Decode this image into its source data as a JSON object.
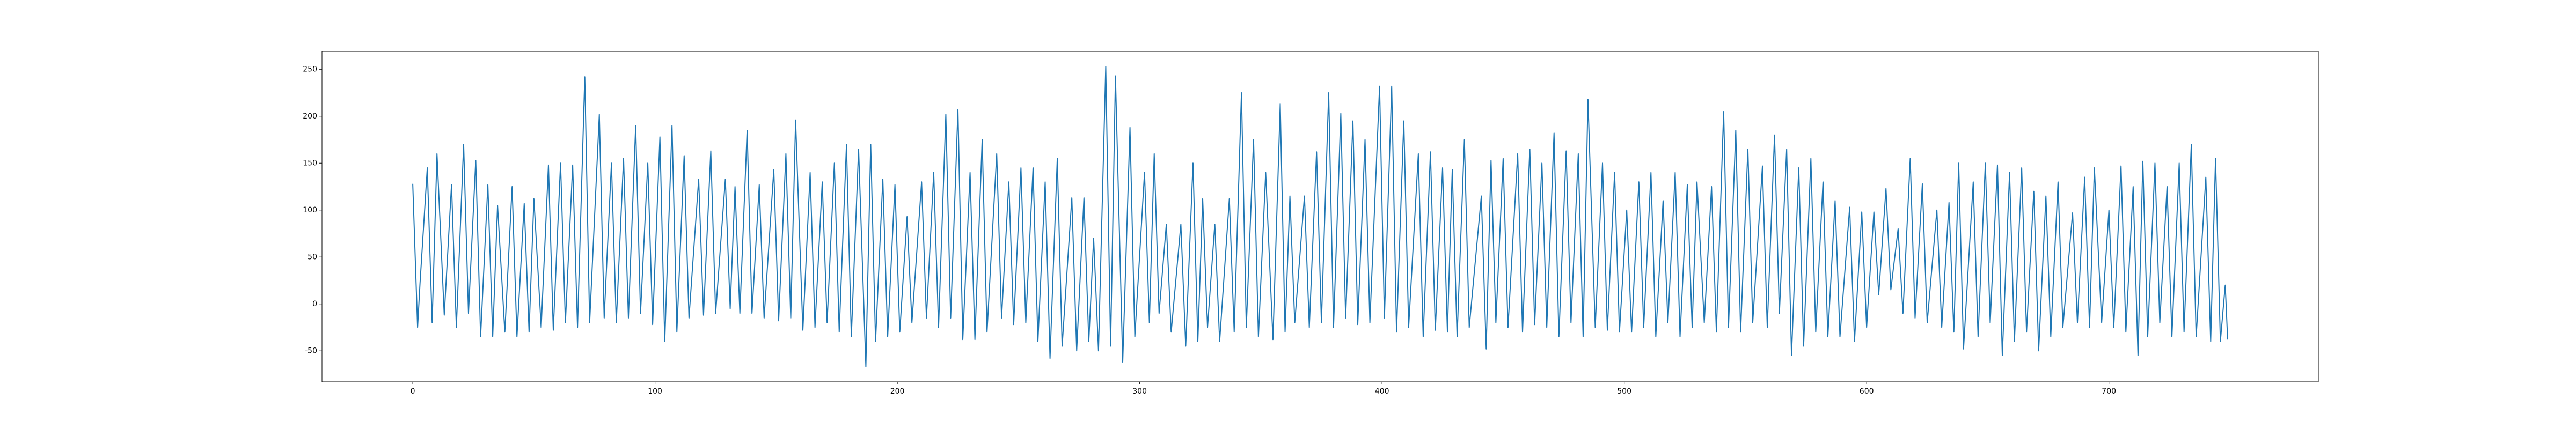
{
  "chart_data": {
    "type": "line",
    "color": "#1f77b4",
    "grid": false,
    "xlim": [
      -37.45,
      786.45
    ],
    "ylim": [
      -83,
      269
    ],
    "xticks": [
      0,
      100,
      200,
      300,
      400,
      500,
      600,
      700
    ],
    "yticks": [
      -50,
      0,
      50,
      100,
      150,
      200,
      250
    ],
    "x": [
      0,
      2,
      3,
      6,
      8,
      10,
      13,
      16,
      18,
      21,
      23,
      26,
      28,
      31,
      33,
      35,
      38,
      41,
      43,
      46,
      48,
      50,
      53,
      56,
      58,
      61,
      63,
      66,
      68,
      71,
      73,
      77,
      79,
      82,
      84,
      87,
      89,
      92,
      94,
      97,
      99,
      102,
      104,
      107,
      109,
      112,
      114,
      118,
      120,
      123,
      125,
      129,
      131,
      133,
      135,
      138,
      140,
      143,
      145,
      149,
      151,
      154,
      156,
      158,
      161,
      164,
      166,
      169,
      171,
      174,
      176,
      179,
      181,
      184,
      187,
      189,
      191,
      194,
      196,
      199,
      201,
      204,
      206,
      210,
      212,
      215,
      217,
      220,
      222,
      225,
      227,
      230,
      232,
      235,
      237,
      241,
      243,
      246,
      248,
      251,
      253,
      256,
      258,
      261,
      263,
      266,
      268,
      272,
      274,
      277,
      279,
      281,
      283,
      286,
      288,
      290,
      293,
      296,
      298,
      302,
      304,
      306,
      308,
      311,
      313,
      317,
      319,
      322,
      324,
      326,
      328,
      331,
      333,
      337,
      339,
      342,
      344,
      347,
      349,
      352,
      355,
      358,
      360,
      362,
      364,
      368,
      370,
      373,
      375,
      378,
      380,
      383,
      385,
      388,
      390,
      393,
      395,
      399,
      401,
      404,
      406,
      409,
      411,
      415,
      417,
      420,
      422,
      425,
      427,
      429,
      431,
      434,
      436,
      441,
      443,
      445,
      447,
      450,
      452,
      456,
      458,
      461,
      463,
      466,
      468,
      471,
      473,
      476,
      478,
      481,
      483,
      485,
      488,
      491,
      493,
      496,
      498,
      501,
      503,
      506,
      508,
      511,
      513,
      516,
      518,
      521,
      523,
      526,
      528,
      530,
      533,
      536,
      538,
      541,
      543,
      546,
      548,
      551,
      553,
      557,
      559,
      562,
      564,
      567,
      569,
      572,
      574,
      577,
      579,
      582,
      584,
      587,
      589,
      593,
      595,
      598,
      600,
      603,
      605,
      608,
      610,
      613,
      615,
      618,
      620,
      623,
      625,
      629,
      631,
      634,
      636,
      638,
      640,
      644,
      646,
      649,
      651,
      654,
      656,
      659,
      661,
      664,
      666,
      669,
      671,
      674,
      676,
      679,
      681,
      685,
      687,
      690,
      692,
      694,
      697,
      700,
      702,
      705,
      707,
      710,
      712,
      714,
      716,
      719,
      721,
      724,
      726,
      729,
      731,
      734,
      736,
      740,
      742,
      744,
      746,
      748,
      749
    ],
    "values": [
      128,
      -25,
      22,
      145,
      -20,
      160,
      -12,
      127,
      -25,
      170,
      -10,
      153,
      -35,
      127,
      -35,
      105,
      -30,
      125,
      -35,
      107,
      -30,
      112,
      -25,
      148,
      -28,
      150,
      -20,
      148,
      -25,
      242,
      -20,
      202,
      -15,
      150,
      -20,
      155,
      -15,
      190,
      -10,
      150,
      -22,
      178,
      -40,
      190,
      -30,
      158,
      -15,
      133,
      -12,
      163,
      -10,
      133,
      -5,
      125,
      -10,
      185,
      -10,
      127,
      -15,
      143,
      -18,
      160,
      -15,
      196,
      -28,
      140,
      -25,
      130,
      -20,
      150,
      -30,
      170,
      -35,
      165,
      -67,
      170,
      -40,
      133,
      -35,
      127,
      -30,
      93,
      -20,
      130,
      -15,
      140,
      -25,
      202,
      -15,
      207,
      -38,
      140,
      -38,
      175,
      -30,
      160,
      -15,
      130,
      -22,
      145,
      -20,
      145,
      -40,
      130,
      -58,
      155,
      -45,
      113,
      -50,
      113,
      -40,
      70,
      -50,
      253,
      -45,
      243,
      -62,
      188,
      -35,
      140,
      -20,
      160,
      -10,
      85,
      -30,
      85,
      -45,
      150,
      -40,
      112,
      -25,
      85,
      -40,
      112,
      -30,
      225,
      -25,
      175,
      -35,
      140,
      -38,
      213,
      -30,
      115,
      -20,
      115,
      -25,
      162,
      -20,
      225,
      -25,
      203,
      -15,
      195,
      -22,
      175,
      -20,
      232,
      -15,
      232,
      -30,
      195,
      -25,
      160,
      -35,
      162,
      -28,
      145,
      -30,
      143,
      -35,
      175,
      -25,
      115,
      -48,
      153,
      -20,
      155,
      -25,
      160,
      -30,
      165,
      -22,
      150,
      -25,
      182,
      -35,
      163,
      -20,
      160,
      -35,
      218,
      -25,
      150,
      -28,
      140,
      -30,
      100,
      -30,
      130,
      -25,
      140,
      -35,
      110,
      -20,
      140,
      -35,
      127,
      -25,
      130,
      -20,
      125,
      -30,
      205,
      -25,
      185,
      -30,
      165,
      -20,
      147,
      -25,
      180,
      -10,
      165,
      -55,
      145,
      -45,
      155,
      -30,
      130,
      -35,
      110,
      -35,
      103,
      -40,
      98,
      -25,
      98,
      10,
      123,
      15,
      80,
      -10,
      155,
      -15,
      128,
      -20,
      100,
      -25,
      108,
      -30,
      150,
      -48,
      130,
      -35,
      150,
      -20,
      148,
      -55,
      140,
      -40,
      145,
      -30,
      120,
      -50,
      115,
      -35,
      130,
      -25,
      97,
      -20,
      135,
      -25,
      145,
      -20,
      100,
      -25,
      147,
      -30,
      125,
      -55,
      152,
      -35,
      150,
      -20,
      125,
      -35,
      150,
      -30,
      170,
      -35,
      135,
      -40,
      155,
      -40,
      20,
      -38
    ]
  }
}
